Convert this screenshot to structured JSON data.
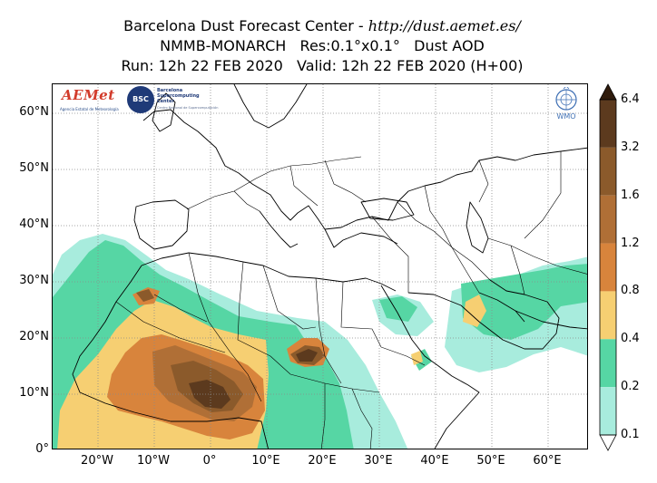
{
  "header": {
    "title_prefix": "Barcelona Dust Forecast Center - ",
    "title_url": "http://dust.aemet.es/",
    "line2": "NMMB-MONARCH   Res:0.1°x0.1°   Dust AOD",
    "line3": "Run: 12h 22 FEB 2020   Valid: 12h 22 FEB 2020 (H+00)"
  },
  "map": {
    "latitude_ticks": [
      "60°N",
      "50°N",
      "40°N",
      "30°N",
      "20°N",
      "10°N",
      "0°"
    ],
    "longitude_ticks": [
      "20°W",
      "10°W",
      "0°",
      "10°E",
      "20°E",
      "30°E",
      "40°E",
      "50°E",
      "60°E"
    ],
    "lon_range": [
      -28,
      67
    ],
    "lat_range": [
      0,
      65
    ],
    "gridlines": true
  },
  "logos": {
    "aemet": "AEMet",
    "aemet_sub": "Agencia Estatal de Meteorología",
    "bsc": "BSC",
    "bsc_name": "Barcelona Supercomputing Center",
    "bsc_sub": "Centro Nacional de Supercomputación",
    "wmo": "WMO"
  },
  "colorbar": {
    "labels": [
      "6.4",
      "3.2",
      "1.6",
      "1.2",
      "0.8",
      "0.4",
      "0.2",
      "0.1"
    ],
    "colors": [
      "#2f1b0c",
      "#5c3a1e",
      "#8b5a2b",
      "#b06f36",
      "#d8843c",
      "#f6cf72",
      "#56d6a4",
      "#a8ecdd"
    ]
  }
}
